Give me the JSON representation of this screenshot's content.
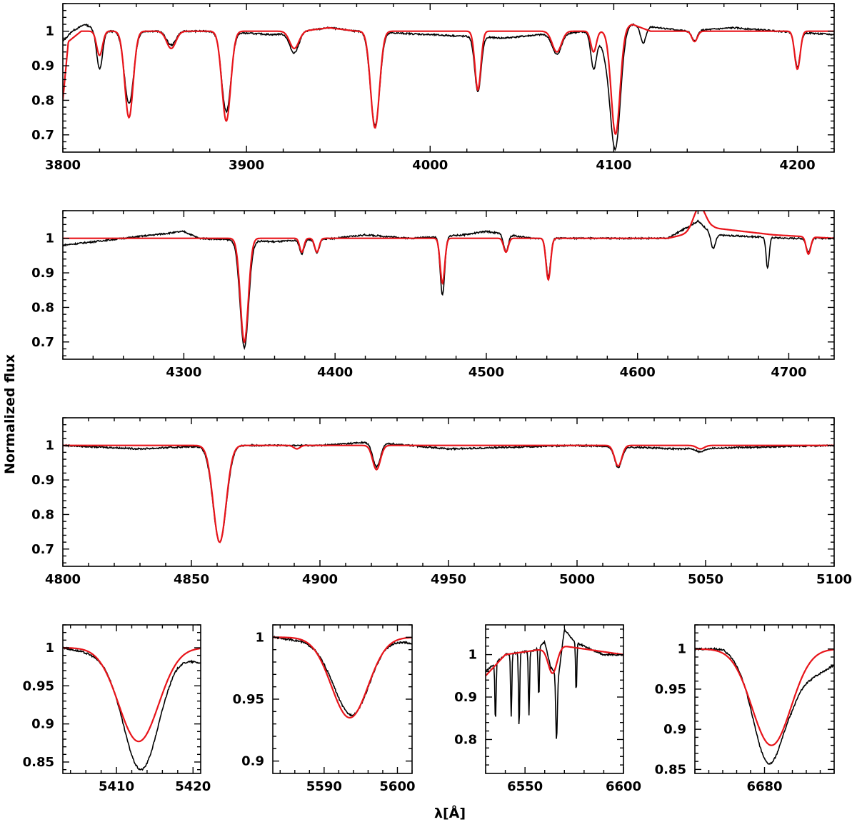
{
  "colors": {
    "observed": "#000000",
    "model": "#e8141a",
    "axis": "#000000"
  },
  "ylabel": "Normalized flux",
  "xlabel": "λ[Å]",
  "chart_data": [
    {
      "type": "line",
      "name": "panel-1",
      "xlim": [
        3800,
        4220
      ],
      "ylim": [
        0.65,
        1.08
      ],
      "xticks": [
        3800,
        3900,
        4000,
        4100,
        4200
      ],
      "yticks": [
        0.7,
        0.8,
        0.9,
        1
      ],
      "yticklabels": [
        "0.7",
        "0.8",
        "0.9",
        "1"
      ],
      "continuum_observed": [
        [
          3800,
          0.97
        ],
        [
          3805,
          1.0
        ],
        [
          3812,
          1.02
        ],
        [
          3820,
          1.0
        ],
        [
          3850,
          1.0
        ],
        [
          3880,
          1.0
        ],
        [
          3915,
          0.99
        ],
        [
          3945,
          1.01
        ],
        [
          3960,
          1.0
        ],
        [
          4000,
          0.99
        ],
        [
          4040,
          0.98
        ],
        [
          4060,
          0.99
        ],
        [
          4090,
          1.0
        ],
        [
          4110,
          1.02
        ],
        [
          4140,
          1.0
        ],
        [
          4165,
          1.01
        ],
        [
          4190,
          1.0
        ],
        [
          4220,
          0.99
        ]
      ],
      "continuum_model": [
        [
          3800,
          0.8
        ],
        [
          3803,
          0.97
        ],
        [
          3810,
          1.0
        ],
        [
          3850,
          1.0
        ],
        [
          3930,
          1.0
        ],
        [
          3945,
          1.01
        ],
        [
          3960,
          1.0
        ],
        [
          4100,
          1.0
        ],
        [
          4110,
          1.02
        ],
        [
          4120,
          1.0
        ],
        [
          4220,
          1.0
        ]
      ],
      "lines_observed": [
        [
          3820,
          0.89,
          1.6
        ],
        [
          3836,
          0.79,
          2.5
        ],
        [
          3859,
          0.96,
          2.5
        ],
        [
          3889,
          0.77,
          2.5
        ],
        [
          3926,
          0.94,
          2.5
        ],
        [
          3970,
          0.73,
          2.5
        ],
        [
          4026,
          0.84,
          1.7
        ],
        [
          4069,
          0.94,
          2.5
        ],
        [
          4089,
          0.9,
          1.5
        ],
        [
          4101,
          0.69,
          2.7
        ],
        [
          4097,
          0.93,
          4.0
        ],
        [
          4116,
          0.95,
          1.5
        ],
        [
          4144,
          0.97,
          1.5
        ],
        [
          4200,
          0.9,
          1.5
        ]
      ],
      "lines_model": [
        [
          3820,
          0.93,
          1.6
        ],
        [
          3836,
          0.75,
          2.3
        ],
        [
          3859,
          0.95,
          2.5
        ],
        [
          3889,
          0.74,
          2.4
        ],
        [
          3926,
          0.95,
          2.5
        ],
        [
          3970,
          0.72,
          2.4
        ],
        [
          4026,
          0.83,
          1.6
        ],
        [
          4069,
          0.94,
          2.5
        ],
        [
          4089,
          0.94,
          1.5
        ],
        [
          4101,
          0.7,
          2.4
        ],
        [
          4144,
          0.97,
          1.5
        ],
        [
          4200,
          0.89,
          1.5
        ]
      ],
      "emission_model": []
    },
    {
      "type": "line",
      "name": "panel-2",
      "xlim": [
        4220,
        4730
      ],
      "ylim": [
        0.65,
        1.08
      ],
      "xticks": [
        4300,
        4400,
        4500,
        4600,
        4700
      ],
      "yticks": [
        0.7,
        0.8,
        0.9,
        1
      ],
      "yticklabels": [
        "0.7",
        "0.8",
        "0.9",
        "1"
      ],
      "continuum_observed": [
        [
          4220,
          0.98
        ],
        [
          4260,
          1.0
        ],
        [
          4300,
          1.02
        ],
        [
          4310,
          1.0
        ],
        [
          4360,
          0.99
        ],
        [
          4400,
          1.0
        ],
        [
          4420,
          1.01
        ],
        [
          4450,
          1.0
        ],
        [
          4485,
          1.01
        ],
        [
          4500,
          1.02
        ],
        [
          4530,
          1.0
        ],
        [
          4580,
          1.0
        ],
        [
          4620,
          1.0
        ],
        [
          4640,
          1.05
        ],
        [
          4650,
          1.01
        ],
        [
          4700,
          1.0
        ],
        [
          4730,
          1.0
        ]
      ],
      "continuum_model": [
        [
          4220,
          1.0
        ],
        [
          4620,
          1.0
        ],
        [
          4630,
          1.01
        ],
        [
          4650,
          1.03
        ],
        [
          4690,
          1.01
        ],
        [
          4730,
          1.0
        ]
      ],
      "lines_observed": [
        [
          4340,
          0.69,
          2.8
        ],
        [
          4378,
          0.96,
          1.4
        ],
        [
          4388,
          0.96,
          1.5
        ],
        [
          4471,
          0.83,
          1.5
        ],
        [
          4513,
          0.95,
          1.5
        ],
        [
          4541,
          0.89,
          1.5
        ],
        [
          4650,
          0.96,
          1.5
        ],
        [
          4686,
          0.91,
          1.0
        ],
        [
          4713,
          0.96,
          1.5
        ]
      ],
      "lines_model": [
        [
          4340,
          0.7,
          2.6
        ],
        [
          4378,
          0.96,
          1.4
        ],
        [
          4388,
          0.96,
          1.5
        ],
        [
          4471,
          0.87,
          1.5
        ],
        [
          4513,
          0.96,
          1.5
        ],
        [
          4541,
          0.88,
          1.5
        ],
        [
          4713,
          0.95,
          1.5
        ]
      ],
      "emission_model": [
        [
          4641,
          1.07,
          4.0
        ]
      ]
    },
    {
      "type": "line",
      "name": "panel-3",
      "xlim": [
        4800,
        5100
      ],
      "ylim": [
        0.65,
        1.08
      ],
      "xticks": [
        4800,
        4850,
        4900,
        4950,
        5000,
        5050,
        5100
      ],
      "yticks": [
        0.7,
        0.8,
        0.9,
        1
      ],
      "yticklabels": [
        "0.7",
        "0.8",
        "0.9",
        "1"
      ],
      "continuum_observed": [
        [
          4800,
          1.0
        ],
        [
          4830,
          0.99
        ],
        [
          4860,
          1.0
        ],
        [
          4900,
          1.0
        ],
        [
          4920,
          1.01
        ],
        [
          4950,
          0.99
        ],
        [
          5000,
          1.0
        ],
        [
          5040,
          0.99
        ],
        [
          5100,
          1.0
        ]
      ],
      "continuum_model": [
        [
          4800,
          1.0
        ],
        [
          5100,
          1.0
        ]
      ],
      "lines_observed": [
        [
          4861,
          0.72,
          2.6
        ],
        [
          4922,
          0.93,
          1.5
        ],
        [
          5016,
          0.94,
          1.4
        ],
        [
          5048,
          0.99,
          1.5
        ]
      ],
      "lines_model": [
        [
          4861,
          0.72,
          2.5
        ],
        [
          4891,
          0.99,
          1.2
        ],
        [
          4922,
          0.93,
          1.5
        ],
        [
          5016,
          0.94,
          1.4
        ],
        [
          5048,
          0.99,
          1.5
        ]
      ],
      "emission_model": []
    },
    {
      "type": "line",
      "name": "panel-4",
      "xlim": [
        5403,
        5421
      ],
      "ylim": [
        0.835,
        1.03
      ],
      "xticks": [
        5410,
        5420
      ],
      "yticks": [
        0.85,
        0.9,
        0.95,
        1
      ],
      "yticklabels": [
        "0.85",
        "0.9",
        "0.95",
        "1"
      ],
      "continuum_observed": [
        [
          5403,
          1.0
        ],
        [
          5408,
          0.99
        ],
        [
          5418,
          0.99
        ],
        [
          5421,
          0.98
        ]
      ],
      "continuum_model": [
        [
          5403,
          1.0
        ],
        [
          5421,
          1.0
        ]
      ],
      "lines_observed": [
        [
          5413.2,
          0.85,
          2.3
        ]
      ],
      "lines_model": [
        [
          5412.9,
          0.877,
          2.6
        ]
      ],
      "emission_model": []
    },
    {
      "type": "line",
      "name": "panel-5",
      "xlim": [
        5583,
        5602
      ],
      "ylim": [
        0.89,
        1.01
      ],
      "xticks": [
        5590,
        5600
      ],
      "yticks": [
        0.9,
        0.95,
        1
      ],
      "yticklabels": [
        "0.9",
        "0.95",
        "1"
      ],
      "continuum_observed": [
        [
          5583,
          1.0
        ],
        [
          5590,
          0.995
        ],
        [
          5598,
          1.0
        ],
        [
          5602,
          0.995
        ]
      ],
      "continuum_model": [
        [
          5583,
          1.0
        ],
        [
          5602,
          1.0
        ]
      ],
      "lines_observed": [
        [
          5593.8,
          0.94,
          2.4
        ]
      ],
      "lines_model": [
        [
          5593.5,
          0.935,
          2.5
        ]
      ],
      "emission_model": []
    },
    {
      "type": "line",
      "name": "panel-6",
      "xlim": [
        6530,
        6600
      ],
      "ylim": [
        0.72,
        1.07
      ],
      "xticks": [
        6550,
        6600
      ],
      "yticks": [
        0.8,
        0.9,
        1
      ],
      "yticklabels": [
        "0.8",
        "0.9",
        "1"
      ],
      "continuum_observed": [
        [
          6530,
          0.96
        ],
        [
          6540,
          1.0
        ],
        [
          6555,
          1.01
        ],
        [
          6560,
          1.03
        ],
        [
          6563,
          0.97
        ],
        [
          6567,
          0.95
        ],
        [
          6570,
          1.06
        ],
        [
          6575,
          1.03
        ],
        [
          6590,
          1.0
        ],
        [
          6600,
          1.0
        ]
      ],
      "continuum_model": [
        [
          6530,
          0.95
        ],
        [
          6540,
          1.0
        ],
        [
          6555,
          1.01
        ],
        [
          6570,
          1.02
        ],
        [
          6600,
          1.0
        ]
      ],
      "lines_observed": [
        [
          6543,
          0.85,
          0.3
        ],
        [
          6547,
          0.82,
          0.3
        ],
        [
          6552,
          0.85,
          0.3
        ],
        [
          6557,
          0.88,
          0.3
        ],
        [
          6566,
          0.84,
          0.4
        ],
        [
          6576,
          0.88,
          0.3
        ],
        [
          6535,
          0.86,
          0.3
        ]
      ],
      "lines_model": [
        [
          6564,
          0.94,
          2.2
        ]
      ],
      "emission_model": []
    },
    {
      "type": "line",
      "name": "panel-7",
      "xlim": [
        6670,
        6690
      ],
      "ylim": [
        0.845,
        1.03
      ],
      "xticks": [
        6680
      ],
      "yticks": [
        0.85,
        0.9,
        0.95,
        1
      ],
      "yticklabels": [
        "0.85",
        "0.9",
        "0.95",
        "1"
      ],
      "continuum_observed": [
        [
          6670,
          1.0
        ],
        [
          6674,
          1.0
        ],
        [
          6684,
          0.95
        ],
        [
          6690,
          0.98
        ]
      ],
      "continuum_model": [
        [
          6670,
          1.0
        ],
        [
          6690,
          1.0
        ]
      ],
      "lines_observed": [
        [
          6680.5,
          0.89,
          2.1
        ]
      ],
      "lines_model": [
        [
          6681,
          0.88,
          2.8
        ]
      ],
      "emission_model": []
    }
  ]
}
